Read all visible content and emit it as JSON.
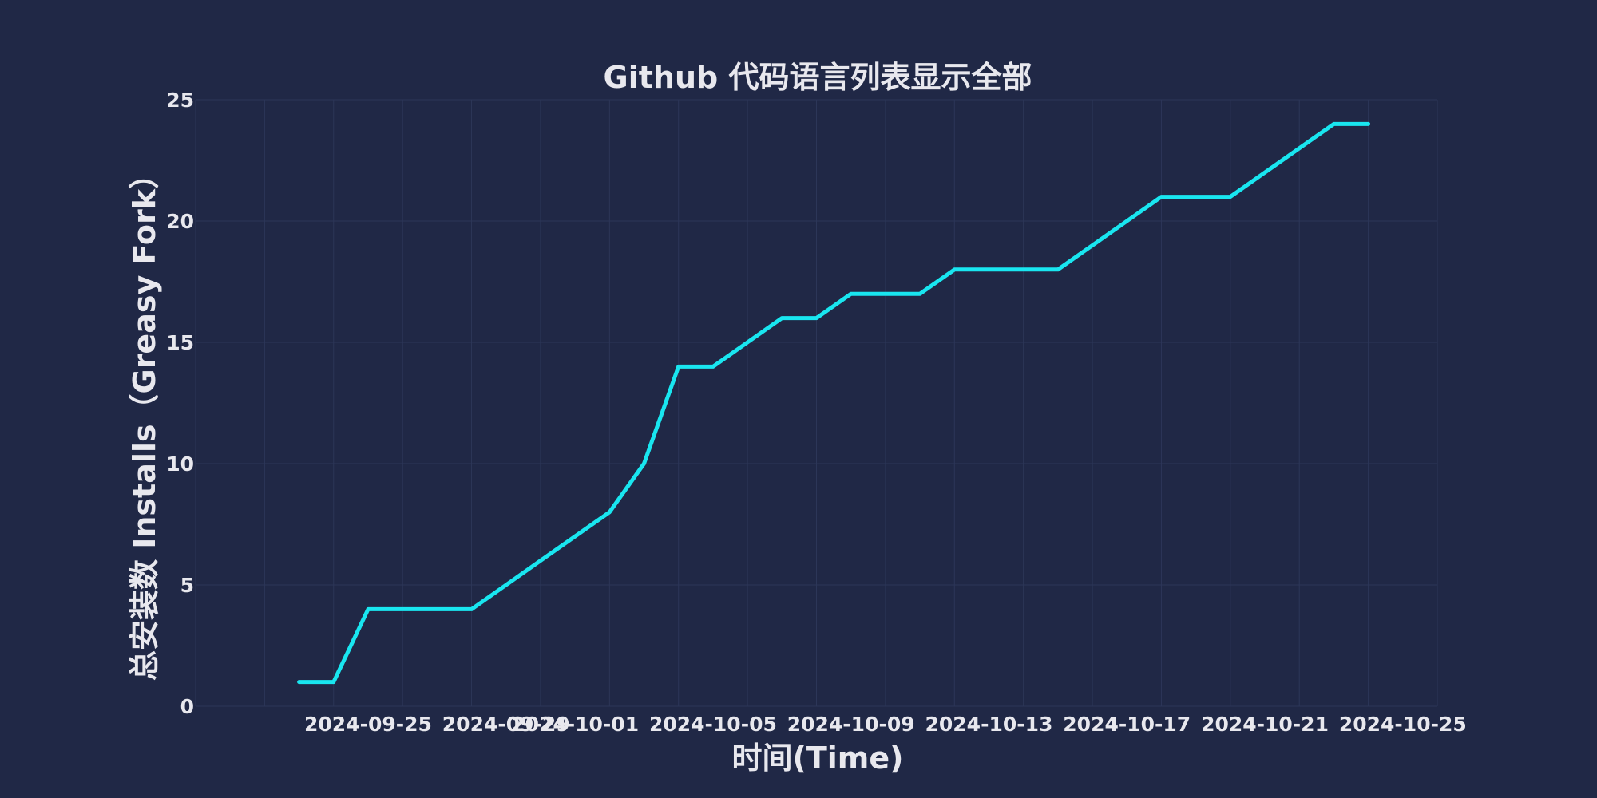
{
  "chart_data": {
    "type": "line",
    "title": "Github 代码语言列表显示全部",
    "xlabel": "时间(Time)",
    "ylabel": "总安装数 Installs（Greasy Fork）",
    "x_tick_labels": [
      "2024-09-25",
      "2024-09-29",
      "2024-10-01",
      "2024-10-05",
      "2024-10-09",
      "2024-10-13",
      "2024-10-17",
      "2024-10-21",
      "2024-10-25"
    ],
    "y_ticks": [
      0,
      5,
      10,
      15,
      20,
      25
    ],
    "xlim": [
      "2024-09-20",
      "2024-10-26"
    ],
    "ylim": [
      0,
      25
    ],
    "grid": true,
    "series": [
      {
        "color": "#19e6f0",
        "x": [
          "2024-09-23",
          "2024-09-24",
          "2024-09-25",
          "2024-09-26",
          "2024-09-27",
          "2024-09-28",
          "2024-09-29",
          "2024-09-30",
          "2024-10-01",
          "2024-10-02",
          "2024-10-03",
          "2024-10-04",
          "2024-10-05",
          "2024-10-06",
          "2024-10-07",
          "2024-10-08",
          "2024-10-09",
          "2024-10-10",
          "2024-10-11",
          "2024-10-12",
          "2024-10-13",
          "2024-10-14",
          "2024-10-15",
          "2024-10-16",
          "2024-10-17",
          "2024-10-18",
          "2024-10-19",
          "2024-10-20",
          "2024-10-21",
          "2024-10-22",
          "2024-10-23",
          "2024-10-24"
        ],
        "y": [
          1,
          1,
          4,
          4,
          4,
          4,
          5,
          6,
          7,
          8,
          10,
          14,
          14,
          15,
          16,
          16,
          17,
          17,
          17,
          18,
          18,
          18,
          18,
          19,
          20,
          21,
          21,
          21,
          22,
          23,
          24,
          24
        ]
      }
    ],
    "colors": {
      "background": "#202846",
      "grid": "#2c3658",
      "text": "#e8e8ee",
      "line": "#19e6f0"
    }
  }
}
